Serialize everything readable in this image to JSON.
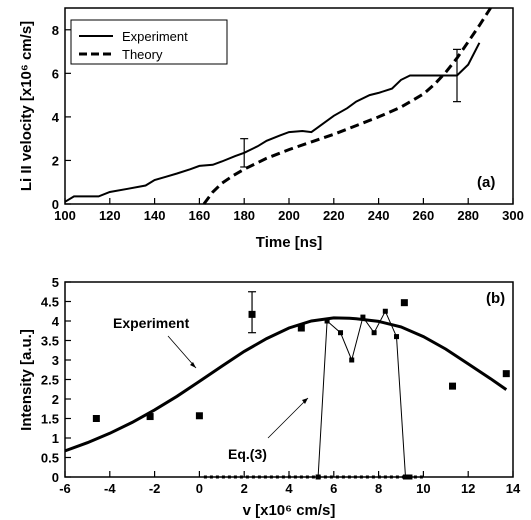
{
  "chart_data": [
    {
      "type": "line",
      "panel_label": "(a)",
      "xlabel": "Time [ns]",
      "ylabel": "Li II velocity [x10⁶ cm/s]",
      "xlim": [
        100,
        300
      ],
      "ylim": [
        0,
        9
      ],
      "xticks": [
        100,
        120,
        140,
        160,
        180,
        200,
        220,
        240,
        260,
        280,
        300
      ],
      "yticks": [
        0,
        2,
        4,
        6,
        8
      ],
      "grid": false,
      "legend_position": "top-left",
      "series": [
        {
          "name": "Experiment",
          "style": "solid",
          "x": [
            100,
            104,
            108,
            115,
            120,
            128,
            136,
            140,
            145,
            150,
            156,
            160,
            166,
            170,
            176,
            180,
            186,
            190,
            196,
            200,
            206,
            210,
            214,
            220,
            226,
            230,
            236,
            240,
            246,
            250,
            254,
            260,
            265,
            270,
            275,
            280,
            285
          ],
          "y": [
            0.1,
            0.35,
            0.35,
            0.35,
            0.55,
            0.7,
            0.85,
            1.1,
            1.25,
            1.4,
            1.6,
            1.75,
            1.8,
            1.95,
            2.2,
            2.35,
            2.65,
            2.9,
            3.15,
            3.3,
            3.35,
            3.3,
            3.6,
            4.05,
            4.4,
            4.7,
            5.0,
            5.1,
            5.3,
            5.7,
            5.9,
            5.9,
            5.9,
            5.9,
            5.9,
            6.4,
            7.4
          ]
        },
        {
          "name": "Theory",
          "style": "dashed",
          "x": [
            162,
            166,
            170,
            175,
            180,
            190,
            200,
            210,
            220,
            230,
            240,
            250,
            260,
            265,
            270,
            275,
            280,
            285,
            290
          ],
          "y": [
            0.0,
            0.55,
            0.95,
            1.3,
            1.6,
            2.1,
            2.5,
            2.85,
            3.2,
            3.6,
            4.0,
            4.45,
            5.05,
            5.5,
            6.05,
            6.7,
            7.45,
            8.2,
            9.0
          ]
        }
      ],
      "error_bars": [
        {
          "x": 180,
          "y": 2.35,
          "low": 1.7,
          "high": 3.0
        },
        {
          "x": 275,
          "y": 5.9,
          "low": 4.7,
          "high": 7.1
        }
      ]
    },
    {
      "type": "scatter",
      "panel_label": "(b)",
      "xlabel": "v [x10⁶ cm/s]",
      "ylabel": "Intensity [a.u.]",
      "xlim": [
        -6,
        14
      ],
      "ylim": [
        0,
        5
      ],
      "xticks": [
        -6,
        -4,
        -2,
        0,
        2,
        4,
        6,
        8,
        10,
        12,
        14
      ],
      "yticks": [
        0,
        0.5,
        1,
        1.5,
        2,
        2.5,
        3,
        3.5,
        4,
        4.5,
        5
      ],
      "grid": false,
      "annotations": [
        "Experiment",
        "Eq.(3)"
      ],
      "series": [
        {
          "style": "markers-square",
          "x": [
            -4.6,
            -2.2,
            0.0,
            2.35,
            4.55,
            11.3,
            13.7,
            9.15
          ],
          "y": [
            1.5,
            1.55,
            1.57,
            4.17,
            3.82,
            2.33,
            2.65,
            4.47
          ]
        },
        {
          "style": "thick-solid",
          "x": [
            -6,
            -5,
            -4,
            -3,
            -2,
            -1,
            0,
            1,
            2,
            3,
            4,
            5,
            6,
            6.7,
            7,
            8,
            9,
            10,
            11,
            12,
            13,
            13.7
          ],
          "y": [
            0.67,
            0.88,
            1.12,
            1.4,
            1.72,
            2.07,
            2.45,
            2.84,
            3.22,
            3.55,
            3.82,
            4.0,
            4.08,
            4.07,
            4.06,
            3.99,
            3.85,
            3.6,
            3.28,
            2.9,
            2.52,
            2.24
          ]
        },
        {
          "style": "thin-solid-markers",
          "x": [
            5.3,
            5.7,
            6.3,
            6.8,
            7.3,
            7.8,
            8.3,
            8.8,
            9.2,
            9.4
          ],
          "y": [
            0.0,
            4.0,
            3.7,
            3.0,
            4.1,
            3.7,
            4.25,
            3.6,
            0.0,
            0.0
          ]
        },
        {
          "style": "dotted",
          "x": [
            0.2,
            0.6,
            1.0,
            1.4,
            1.8,
            2.2,
            2.6,
            3.0,
            3.4,
            3.8,
            4.2,
            4.6,
            5.0,
            5.3,
            9.2,
            9.6,
            10.0
          ],
          "y": [
            0,
            0,
            0,
            0,
            0,
            0,
            0,
            0,
            0,
            0,
            0,
            0,
            0,
            0,
            0,
            0,
            0
          ]
        }
      ],
      "error_bars": [
        {
          "x": 2.35,
          "y": 4.17,
          "low": 3.7,
          "high": 4.75
        }
      ]
    }
  ]
}
